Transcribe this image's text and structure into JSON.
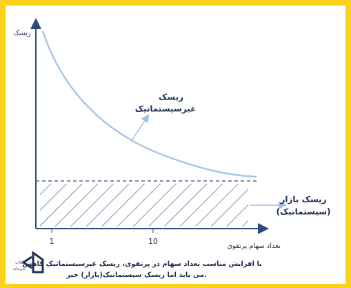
{
  "axes": {
    "y_label": "ریسک",
    "x_label": "تعداد سهام پرتفوی",
    "x_ticks": [
      "1",
      "10"
    ]
  },
  "annotations": {
    "unsystematic": [
      "ریسک",
      "غیرسیستماتیک"
    ],
    "systematic": [
      "ریسک بازار",
      "(سیستماتیک)"
    ]
  },
  "caption": [
    "با افزایش مناسب تعداد سهام در پرتفوی، ریسک غیرسیستماتیک کاهش",
    "می یابد اما ریسک سیستماتیک(بازار) خیر."
  ],
  "logo": [
    "کتاب",
    "سرمایه"
  ]
}
